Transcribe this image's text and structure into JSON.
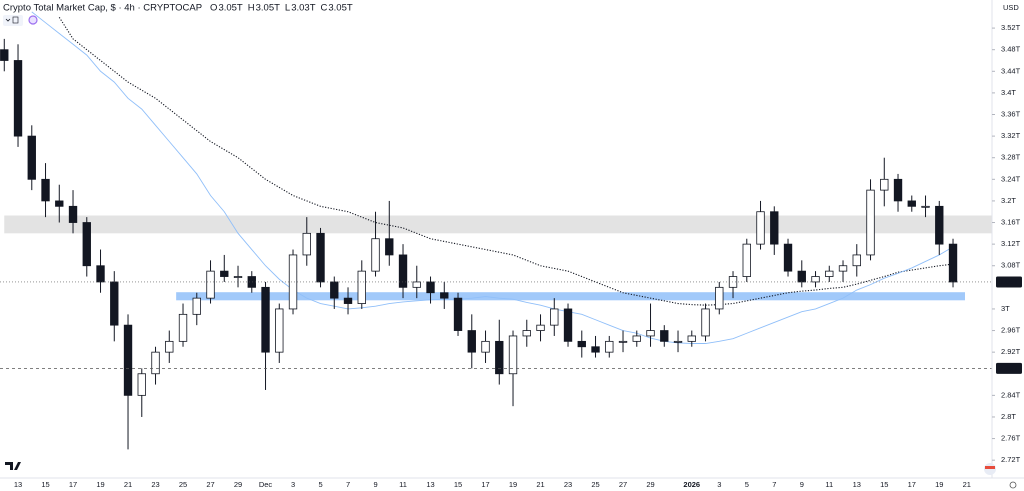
{
  "header": {
    "title": "Crypto Total Market Cap, $ · 4h · CRYPTOCAP",
    "ohlc": [
      {
        "key": "O",
        "value": "3.05T"
      },
      {
        "key": "H",
        "value": "3.05T"
      },
      {
        "key": "L",
        "value": "3.03T"
      },
      {
        "key": "C",
        "value": "3.05T"
      }
    ]
  },
  "currency": "USD",
  "chart_data": {
    "type": "candlestick",
    "categories": [
      null,
      "13",
      null,
      "15",
      null,
      "17",
      null,
      "19",
      null,
      "21",
      null,
      "23",
      null,
      "25",
      null,
      "27",
      null,
      "29",
      null,
      "Dec",
      null,
      "3",
      null,
      "5",
      null,
      "7",
      null,
      "9",
      null,
      "11",
      null,
      "13",
      null,
      "15",
      null,
      "17",
      null,
      "19",
      null,
      "21",
      null,
      "23",
      null,
      "25",
      null,
      "27",
      null,
      "29",
      null,
      null,
      "2026",
      null,
      "3",
      null,
      "5",
      null,
      "7",
      null,
      "9",
      null,
      "11",
      null,
      "13",
      null,
      "15",
      null,
      "17",
      null,
      "19",
      null,
      "21"
    ],
    "open": [
      3.48,
      3.46,
      3.32,
      3.24,
      3.2,
      3.19,
      3.16,
      3.08,
      3.05,
      2.97,
      2.84,
      2.88,
      2.92,
      2.94,
      2.99,
      3.02,
      3.07,
      3.06,
      3.06,
      3.04,
      2.92,
      3.0,
      3.1,
      3.14,
      3.05,
      3.02,
      3.01,
      3.07,
      3.13,
      3.1,
      3.04,
      3.05,
      3.03,
      3.02,
      2.96,
      2.92,
      2.94,
      2.88,
      2.95,
      2.96,
      2.97,
      3.0,
      2.94,
      2.93,
      2.92,
      2.94,
      2.94,
      2.95,
      2.96,
      2.94,
      2.94,
      2.95,
      3.0,
      3.04,
      3.06,
      3.12,
      3.18,
      3.12,
      3.07,
      3.05,
      3.06,
      3.07,
      3.08,
      3.1,
      3.22,
      3.24,
      3.2,
      3.19,
      3.19,
      3.12,
      null
    ],
    "high": [
      3.5,
      3.49,
      3.34,
      3.27,
      3.23,
      3.22,
      3.17,
      3.11,
      3.07,
      2.99,
      2.89,
      2.93,
      2.96,
      3.01,
      3.03,
      3.09,
      3.1,
      3.08,
      3.07,
      3.05,
      3.01,
      3.11,
      3.17,
      3.15,
      3.06,
      3.04,
      3.09,
      3.18,
      3.2,
      3.12,
      3.08,
      3.06,
      3.05,
      3.03,
      2.99,
      2.96,
      2.98,
      2.96,
      2.98,
      2.99,
      3.02,
      3.01,
      2.96,
      2.95,
      2.95,
      2.96,
      2.96,
      3.01,
      2.97,
      2.96,
      2.96,
      3.01,
      3.05,
      3.07,
      3.13,
      3.2,
      3.19,
      3.13,
      3.09,
      3.07,
      3.08,
      3.09,
      3.12,
      3.24,
      3.28,
      3.25,
      3.21,
      3.21,
      3.2,
      3.13,
      null
    ],
    "low": [
      3.44,
      3.3,
      3.22,
      3.17,
      3.16,
      3.14,
      3.06,
      3.03,
      2.94,
      2.74,
      2.8,
      2.86,
      2.9,
      2.93,
      2.97,
      3.01,
      3.05,
      3.04,
      3.03,
      2.85,
      2.9,
      2.99,
      3.08,
      3.04,
      3.0,
      2.99,
      3.0,
      3.06,
      3.08,
      3.02,
      3.02,
      3.01,
      3.0,
      2.95,
      2.89,
      2.9,
      2.86,
      2.82,
      2.93,
      2.94,
      2.95,
      2.93,
      2.91,
      2.91,
      2.91,
      2.92,
      2.93,
      2.93,
      2.93,
      2.92,
      2.93,
      2.94,
      2.99,
      3.02,
      3.05,
      3.11,
      3.1,
      3.06,
      3.04,
      3.04,
      3.05,
      3.05,
      3.06,
      3.09,
      3.19,
      3.18,
      3.18,
      3.17,
      3.1,
      3.04,
      null
    ],
    "close": [
      3.46,
      3.32,
      3.24,
      3.2,
      3.19,
      3.16,
      3.08,
      3.05,
      2.97,
      2.84,
      2.88,
      2.92,
      2.94,
      2.99,
      3.02,
      3.07,
      3.06,
      3.06,
      3.04,
      2.92,
      3.0,
      3.1,
      3.14,
      3.05,
      3.02,
      3.01,
      3.07,
      3.13,
      3.1,
      3.04,
      3.05,
      3.03,
      3.02,
      2.96,
      2.92,
      2.94,
      2.88,
      2.95,
      2.96,
      2.97,
      3.0,
      2.94,
      2.93,
      2.92,
      2.94,
      2.94,
      2.95,
      2.96,
      2.94,
      2.94,
      2.95,
      3.0,
      3.04,
      3.06,
      3.12,
      3.18,
      3.12,
      3.07,
      3.05,
      3.06,
      3.07,
      3.08,
      3.1,
      3.22,
      3.24,
      3.2,
      3.19,
      3.19,
      3.12,
      3.05,
      null
    ],
    "up_color": "#ffffff",
    "down_color": "#131722",
    "overlays": [
      {
        "color": "#131722",
        "style": "dotted",
        "values": [
          null,
          null,
          null,
          null,
          3.54,
          3.5,
          3.48,
          3.46,
          3.44,
          3.42,
          3.405,
          3.39,
          3.37,
          3.35,
          3.33,
          3.31,
          3.295,
          3.28,
          3.26,
          3.24,
          3.225,
          3.21,
          3.2,
          3.19,
          3.185,
          3.18,
          3.17,
          3.16,
          3.155,
          3.15,
          3.14,
          3.13,
          3.125,
          3.12,
          3.115,
          3.11,
          3.105,
          3.1,
          3.09,
          3.08,
          3.075,
          3.07,
          3.06,
          3.05,
          3.04,
          3.03,
          3.025,
          3.02,
          3.015,
          3.01,
          3.008,
          3.007,
          3.008,
          3.01,
          3.015,
          3.02,
          3.025,
          3.03,
          3.033,
          3.035,
          3.038,
          3.04,
          3.046,
          3.053,
          3.06,
          3.068,
          3.072,
          3.076,
          3.08,
          3.083,
          null
        ]
      },
      {
        "color": "#90bff9",
        "style": "solid",
        "values": [
          null,
          null,
          3.55,
          3.53,
          3.51,
          3.49,
          3.47,
          3.44,
          3.42,
          3.39,
          3.37,
          3.34,
          3.31,
          3.28,
          3.25,
          3.21,
          3.18,
          3.14,
          3.11,
          3.08,
          3.055,
          3.035,
          3.02,
          3.01,
          3.005,
          3.0,
          3.002,
          3.005,
          3.01,
          3.013,
          3.015,
          3.017,
          3.018,
          3.018,
          3.02,
          3.023,
          3.02,
          3.018,
          3.012,
          3.007,
          3.0,
          2.995,
          2.99,
          2.98,
          2.97,
          2.96,
          2.955,
          2.946,
          2.94,
          2.937,
          2.936,
          2.936,
          2.94,
          2.945,
          2.955,
          2.965,
          2.975,
          2.985,
          2.995,
          3.0,
          3.01,
          3.02,
          3.035,
          3.045,
          3.057,
          3.066,
          3.076,
          3.088,
          3.1,
          3.115,
          null
        ]
      }
    ],
    "zones": [
      {
        "from": 3.14,
        "to": 3.173,
        "x_from": 0,
        "color": "#e3e3e3"
      },
      {
        "from": 3.016,
        "to": 3.031,
        "x_from": 12.5,
        "color": "#90bff9"
      }
    ],
    "price_lines": [
      {
        "value": 3.05,
        "label": "3.05T",
        "style": "dotted"
      },
      {
        "value": 2.89,
        "label": "2.89T",
        "style": "dashed"
      }
    ],
    "ylim": [
      2.687,
      3.572
    ],
    "yticks": [
      {
        "value": 2.72,
        "label": "2.72T"
      },
      {
        "value": 2.76,
        "label": "2.76T"
      },
      {
        "value": 2.8,
        "label": "2.8T"
      },
      {
        "value": 2.84,
        "label": "2.84T"
      },
      {
        "value": 2.92,
        "label": "2.92T"
      },
      {
        "value": 2.96,
        "label": "2.96T"
      },
      {
        "value": 3,
        "label": "3T"
      },
      {
        "value": 3.08,
        "label": "3.08T"
      },
      {
        "value": 3.12,
        "label": "3.12T"
      },
      {
        "value": 3.16,
        "label": "3.16T"
      },
      {
        "value": 3.2,
        "label": "3.2T"
      },
      {
        "value": 3.24,
        "label": "3.24T"
      },
      {
        "value": 3.28,
        "label": "3.28T"
      },
      {
        "value": 3.32,
        "label": "3.32T"
      },
      {
        "value": 3.36,
        "label": "3.36T"
      },
      {
        "value": 3.4,
        "label": "3.4T"
      },
      {
        "value": 3.44,
        "label": "3.44T"
      },
      {
        "value": 3.48,
        "label": "3.48T"
      },
      {
        "value": 3.52,
        "label": "3.52T"
      }
    ],
    "grid": false
  }
}
